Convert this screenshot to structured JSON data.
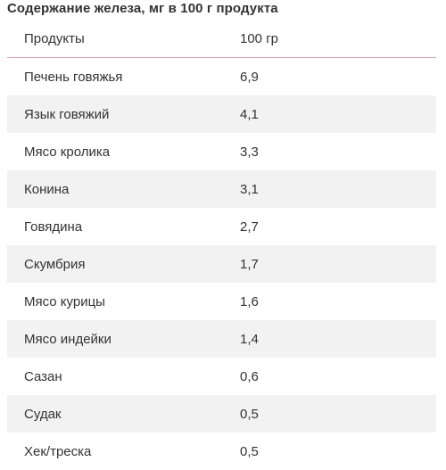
{
  "title": "Содержание железа, мг в 100 г продукта",
  "table": {
    "headers": [
      "Продукты",
      "100 гр"
    ],
    "rows": [
      [
        "Печень говяжья",
        "6,9"
      ],
      [
        "Язык говяжий",
        "4,1"
      ],
      [
        "Мясо кролика",
        "3,3"
      ],
      [
        "Конина",
        "3,1"
      ],
      [
        "Говядина",
        "2,7"
      ],
      [
        "Скумбрия",
        "1,7"
      ],
      [
        "Мясо курицы",
        "1,6"
      ],
      [
        "Мясо индейки",
        "1,4"
      ],
      [
        "Сазан",
        "0,6"
      ],
      [
        "Судак",
        "0,5"
      ],
      [
        "Хек/треска",
        "0,5"
      ]
    ]
  },
  "colors": {
    "header_divider": "#e4a3ac",
    "stripe": "#f2f2f2",
    "text": "#333333"
  }
}
